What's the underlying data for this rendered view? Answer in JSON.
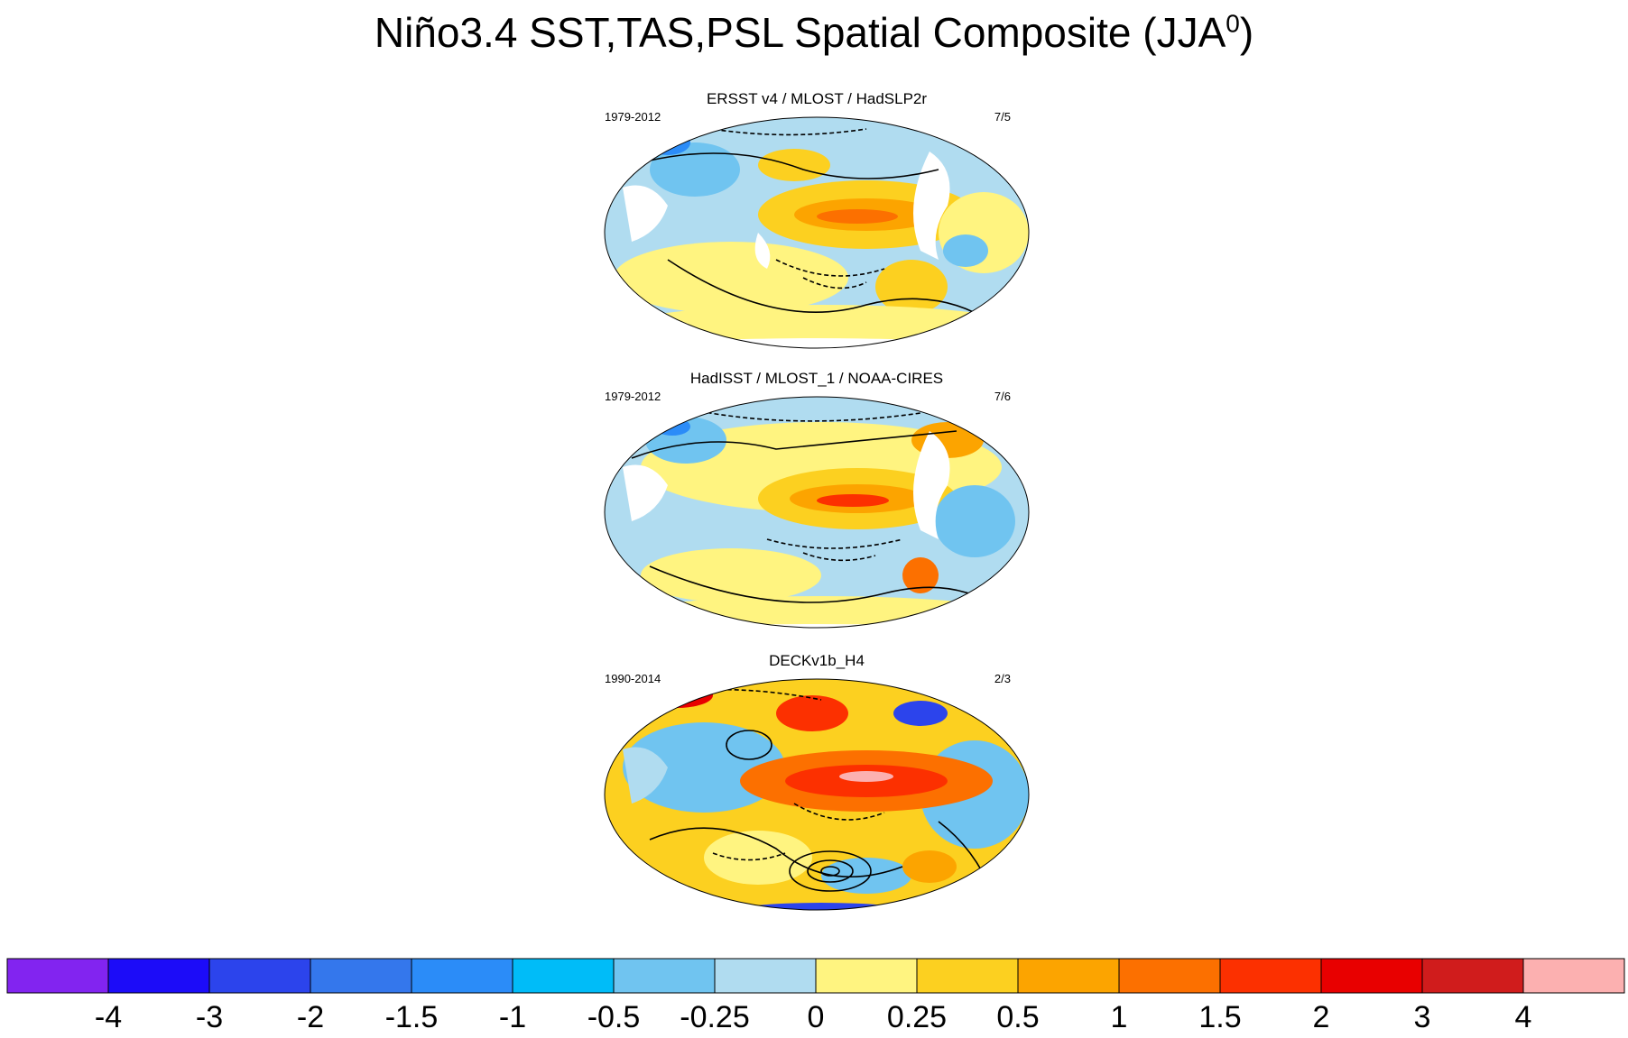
{
  "title": {
    "main": "Niño3.4 SST,TAS,PSL Spatial Composite (JJA",
    "sup": "0",
    "close": ")"
  },
  "panels": [
    {
      "title": "ERSST v4 / MLOST / HadSLP2r",
      "period": "1979-2012",
      "count": "7/5"
    },
    {
      "title": "HadISST / MLOST_1 / NOAA-CIRES",
      "period": "1979-2012",
      "count": "7/6"
    },
    {
      "title": "DECKv1b_H4",
      "period": "1990-2014",
      "count": "2/3"
    }
  ],
  "colorbar": {
    "colors": [
      "#8224f0",
      "#1c0cf8",
      "#2c44ec",
      "#3477ec",
      "#2b8cf8",
      "#00bcf8",
      "#70c4f0",
      "#b0dcf0",
      "#fff480",
      "#fcd020",
      "#fca400",
      "#fc7000",
      "#fc3000",
      "#e80000",
      "#d01c1c",
      "#fcb0b0"
    ],
    "labels": [
      "-4",
      "-3",
      "-2",
      "-1.5",
      "-1",
      "-0.5",
      "-0.25",
      "0",
      "0.25",
      "0.5",
      "1",
      "1.5",
      "2",
      "3",
      "4"
    ]
  }
}
